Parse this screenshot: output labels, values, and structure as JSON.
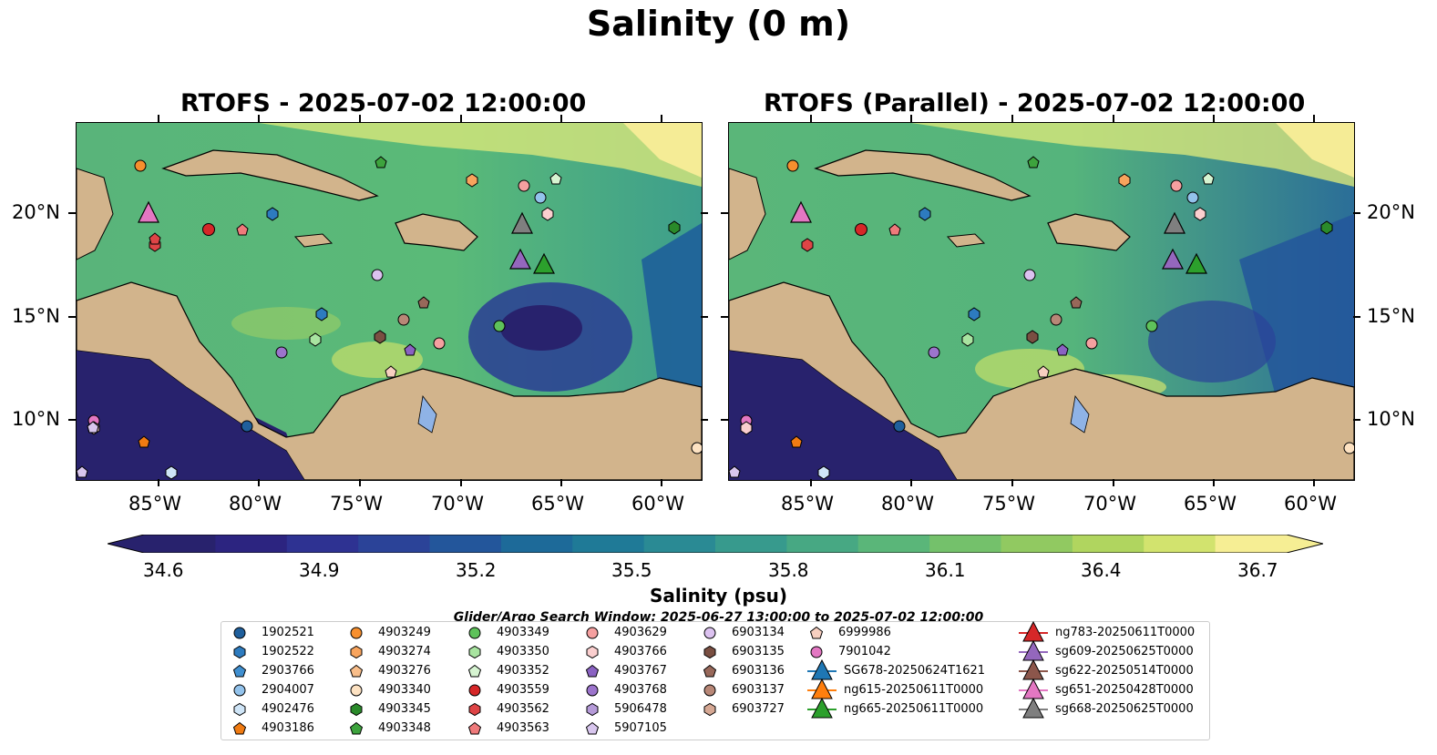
{
  "title": "Salinity (0 m)",
  "panels": [
    {
      "title": "RTOFS - 2025-07-02 12:00:00"
    },
    {
      "title": "RTOFS (Parallel) - 2025-07-02 12:00:00"
    }
  ],
  "lon_ticks": [
    "85°W",
    "80°W",
    "75°W",
    "70°W",
    "65°W",
    "60°W"
  ],
  "lat_ticks": [
    "20°N",
    "15°N",
    "10°N"
  ],
  "colorbar": {
    "label": "Salinity (psu)",
    "ticks": [
      "34.6",
      "34.9",
      "35.2",
      "35.5",
      "35.8",
      "36.1",
      "36.4",
      "36.7"
    ],
    "colors": [
      "#28226d",
      "#2c2480",
      "#2e3292",
      "#2b4398",
      "#23569b",
      "#1d6a99",
      "#1f7a97",
      "#2a8a94",
      "#379a8d",
      "#47a883",
      "#5ab679",
      "#74c16b",
      "#91c961",
      "#b0d55f",
      "#d2e36e",
      "#f6ee94"
    ]
  },
  "search_window": "Glider/Argo Search Window: 2025-06-27 13:00:00 to 2025-07-02 12:00:00",
  "legend": [
    {
      "label": "1902521",
      "shape": "circle",
      "color": "#1f5f9c"
    },
    {
      "label": "1902522",
      "shape": "hexagon",
      "color": "#2d7bbf"
    },
    {
      "label": "2903766",
      "shape": "pentagon",
      "color": "#3f8fd0"
    },
    {
      "label": "2904007",
      "shape": "circle",
      "color": "#93c3ec"
    },
    {
      "label": "4902476",
      "shape": "hexagon",
      "color": "#cfe5f7"
    },
    {
      "label": "4903186",
      "shape": "pentagon",
      "color": "#f07b12"
    },
    {
      "label": "4903249",
      "shape": "circle",
      "color": "#f78f2e"
    },
    {
      "label": "4903274",
      "shape": "hexagon",
      "color": "#f8a45d"
    },
    {
      "label": "4903276",
      "shape": "pentagon",
      "color": "#f9be8a"
    },
    {
      "label": "4903340",
      "shape": "circle",
      "color": "#fde2c2"
    },
    {
      "label": "4903345",
      "shape": "hexagon",
      "color": "#2a8a2a"
    },
    {
      "label": "4903348",
      "shape": "pentagon",
      "color": "#3da33d"
    },
    {
      "label": "4903349",
      "shape": "circle",
      "color": "#5ec25a"
    },
    {
      "label": "4903350",
      "shape": "hexagon",
      "color": "#a8e4a0"
    },
    {
      "label": "4903352",
      "shape": "pentagon",
      "color": "#d6f4d1"
    },
    {
      "label": "4903559",
      "shape": "circle",
      "color": "#d62728"
    },
    {
      "label": "4903562",
      "shape": "hexagon",
      "color": "#de4446"
    },
    {
      "label": "4903563",
      "shape": "pentagon",
      "color": "#ef7a7b"
    },
    {
      "label": "4903629",
      "shape": "circle",
      "color": "#f5a0a0"
    },
    {
      "label": "4903766",
      "shape": "hexagon",
      "color": "#fbcfcf"
    },
    {
      "label": "4903767",
      "shape": "pentagon",
      "color": "#8a62c2"
    },
    {
      "label": "4903768",
      "shape": "circle",
      "color": "#9c74cc"
    },
    {
      "label": "5906478",
      "shape": "hexagon",
      "color": "#b59ad8"
    },
    {
      "label": "5907105",
      "shape": "pentagon",
      "color": "#d8c6ee"
    },
    {
      "label": "6903134",
      "shape": "circle",
      "color": "#dcc2f0"
    },
    {
      "label": "6903135",
      "shape": "hexagon",
      "color": "#7a4f42"
    },
    {
      "label": "6903136",
      "shape": "pentagon",
      "color": "#98685a"
    },
    {
      "label": "6903137",
      "shape": "circle",
      "color": "#b88777"
    },
    {
      "label": "6903727",
      "shape": "hexagon",
      "color": "#d6a894"
    },
    {
      "label": "6999986",
      "shape": "pentagon",
      "color": "#f7cfc0"
    },
    {
      "label": "7901042",
      "shape": "circle",
      "color": "#e377c2"
    },
    {
      "label": "SG678-20250624T1621",
      "shape": "triangle",
      "color": "#1f77b4"
    },
    {
      "label": "ng615-20250611T0000",
      "shape": "triangle",
      "color": "#ff7f0e"
    },
    {
      "label": "ng665-20250611T0000",
      "shape": "triangle",
      "color": "#2ca02c"
    },
    {
      "label": "ng783-20250611T0000",
      "shape": "triangle",
      "color": "#d62728"
    },
    {
      "label": "sg609-20250625T0000",
      "shape": "triangle",
      "color": "#9467bd"
    },
    {
      "label": "sg622-20250514T0000",
      "shape": "triangle",
      "color": "#8c564b"
    },
    {
      "label": "sg651-20250428T0000",
      "shape": "triangle",
      "color": "#e377c2"
    },
    {
      "label": "sg668-20250625T0000",
      "shape": "triangle",
      "color": "#7f7f7f"
    }
  ]
}
